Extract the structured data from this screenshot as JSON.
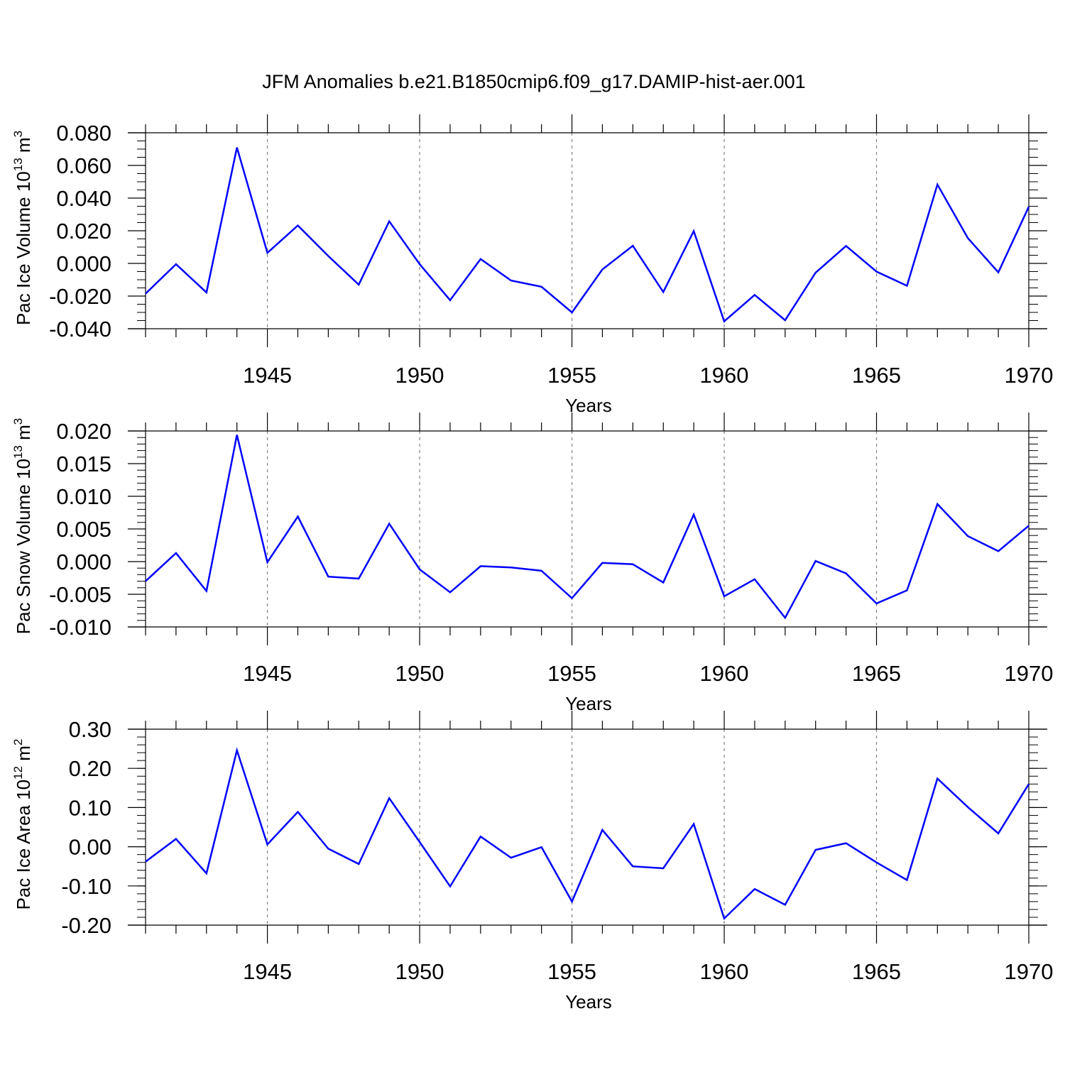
{
  "title": "JFM Anomalies b.e21.B1850cmip6.f09_g17.DAMIP-hist-aer.001",
  "colors": {
    "line": "#0000ff",
    "axis": "#000000",
    "grid": "#808080"
  },
  "chart_data": [
    {
      "type": "line",
      "ylabel_main": "Pac Ice Volume 10",
      "ylabel_exp": "13",
      "ylabel_tail": " m",
      "ylabel_unit_exp": "3",
      "xlabel": "Years",
      "xlim": [
        1941,
        1970
      ],
      "ylim": [
        -0.04,
        0.08
      ],
      "x_ticks": [
        1945,
        1950,
        1955,
        1960,
        1965,
        1970
      ],
      "y_ticks": [
        -0.04,
        -0.02,
        0.0,
        0.02,
        0.04,
        0.06,
        0.08
      ],
      "y_tick_labels": [
        "-0.040",
        "-0.020",
        "0.000",
        "0.020",
        "0.040",
        "0.060",
        "0.080"
      ],
      "y_minor_step": 0.005,
      "grid_x": true,
      "x": [
        1941,
        1942,
        1943,
        1944,
        1945,
        1946,
        1947,
        1948,
        1949,
        1950,
        1951,
        1952,
        1953,
        1954,
        1955,
        1956,
        1957,
        1958,
        1959,
        1960,
        1961,
        1962,
        1963,
        1964,
        1965,
        1966,
        1967,
        1968,
        1969,
        1970
      ],
      "series": [
        {
          "values": [
            -0.0185,
            -0.0005,
            -0.0178,
            0.071,
            0.0065,
            0.0232,
            0.0045,
            -0.013,
            0.0258,
            -0.0005,
            -0.0225,
            0.0027,
            -0.0105,
            -0.0143,
            -0.03,
            -0.0037,
            0.0108,
            -0.0175,
            0.0198,
            -0.0355,
            -0.0193,
            -0.0348,
            -0.0057,
            0.0107,
            -0.005,
            -0.0137,
            0.0483,
            0.0155,
            -0.0055,
            0.0347
          ]
        }
      ]
    },
    {
      "type": "line",
      "ylabel_main": "Pac Snow Volume 10",
      "ylabel_exp": "13",
      "ylabel_tail": " m",
      "ylabel_unit_exp": "3",
      "xlabel": "Years",
      "xlim": [
        1941,
        1970
      ],
      "ylim": [
        -0.01,
        0.02
      ],
      "x_ticks": [
        1945,
        1950,
        1955,
        1960,
        1965,
        1970
      ],
      "y_ticks": [
        -0.01,
        -0.005,
        0.0,
        0.005,
        0.01,
        0.015,
        0.02
      ],
      "y_tick_labels": [
        "-0.010",
        "-0.005",
        "0.000",
        "0.005",
        "0.010",
        "0.015",
        "0.020"
      ],
      "y_minor_step": 0.001,
      "grid_x": true,
      "x": [
        1941,
        1942,
        1943,
        1944,
        1945,
        1946,
        1947,
        1948,
        1949,
        1950,
        1951,
        1952,
        1953,
        1954,
        1955,
        1956,
        1957,
        1958,
        1959,
        1960,
        1961,
        1962,
        1963,
        1964,
        1965,
        1966,
        1967,
        1968,
        1969,
        1970
      ],
      "series": [
        {
          "values": [
            -0.003,
            0.0013,
            -0.0045,
            0.0194,
            -0.0001,
            0.0069,
            -0.0023,
            -0.0026,
            0.0058,
            -0.0012,
            -0.0047,
            -0.0007,
            -0.0009,
            -0.0014,
            -0.0056,
            -0.0002,
            -0.0004,
            -0.0032,
            0.0072,
            -0.0053,
            -0.0027,
            -0.0086,
            0.0001,
            -0.0018,
            -0.0064,
            -0.0044,
            0.0088,
            0.0039,
            0.0016,
            0.0055
          ]
        }
      ]
    },
    {
      "type": "line",
      "ylabel_main": "Pac Ice Area 10",
      "ylabel_exp": "12",
      "ylabel_tail": " m",
      "ylabel_unit_exp": "2",
      "xlabel": "Years",
      "xlim": [
        1941,
        1970
      ],
      "ylim": [
        -0.2,
        0.3
      ],
      "x_ticks": [
        1945,
        1950,
        1955,
        1960,
        1965,
        1970
      ],
      "y_ticks": [
        -0.2,
        -0.1,
        0.0,
        0.1,
        0.2,
        0.3
      ],
      "y_tick_labels": [
        "-0.20",
        "-0.10",
        "0.00",
        "0.10",
        "0.20",
        "0.30"
      ],
      "y_minor_step": 0.02,
      "grid_x": true,
      "x": [
        1941,
        1942,
        1943,
        1944,
        1945,
        1946,
        1947,
        1948,
        1949,
        1950,
        1951,
        1952,
        1953,
        1954,
        1955,
        1956,
        1957,
        1958,
        1959,
        1960,
        1961,
        1962,
        1963,
        1964,
        1965,
        1966,
        1967,
        1968,
        1969,
        1970
      ],
      "series": [
        {
          "values": [
            -0.038,
            0.02,
            -0.068,
            0.246,
            0.006,
            0.089,
            -0.005,
            -0.044,
            0.124,
            0.012,
            -0.101,
            0.026,
            -0.028,
            -0.001,
            -0.14,
            0.043,
            -0.05,
            -0.055,
            0.058,
            -0.183,
            -0.108,
            -0.148,
            -0.008,
            0.009,
            -0.04,
            -0.085,
            0.174,
            0.101,
            0.034,
            0.16
          ]
        }
      ]
    }
  ]
}
